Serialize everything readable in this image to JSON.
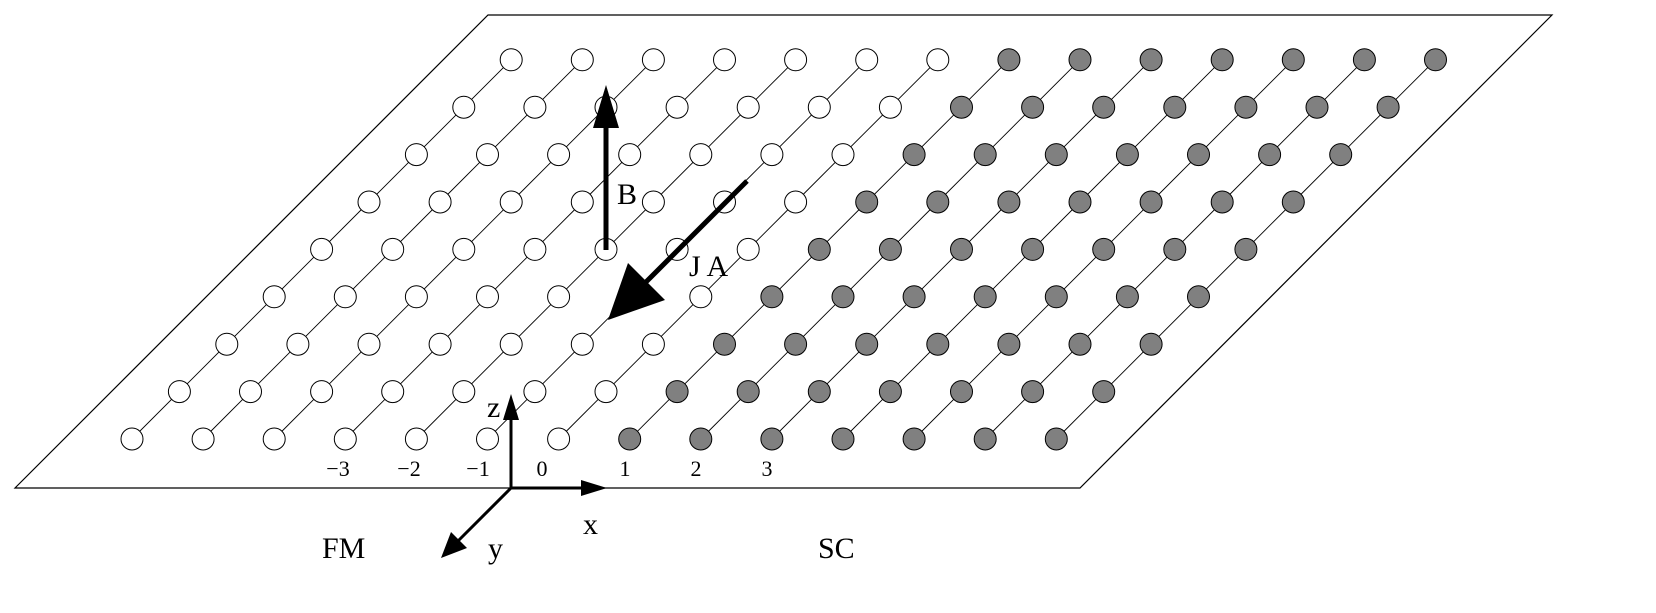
{
  "labels": {
    "field": "B",
    "current": "J A",
    "axis_x": "x",
    "axis_y": "y",
    "axis_z": "z",
    "left_region": "FM",
    "right_region": "SC"
  },
  "x_ticks": [
    "−3",
    "−2",
    "−1",
    "0",
    "1",
    "2",
    "3"
  ],
  "lattice": {
    "rows": 9,
    "columns_per_region": 7,
    "ferromagnet_fill": "#ffffff",
    "superconductor_fill": "#808080",
    "stroke": "#000000"
  }
}
